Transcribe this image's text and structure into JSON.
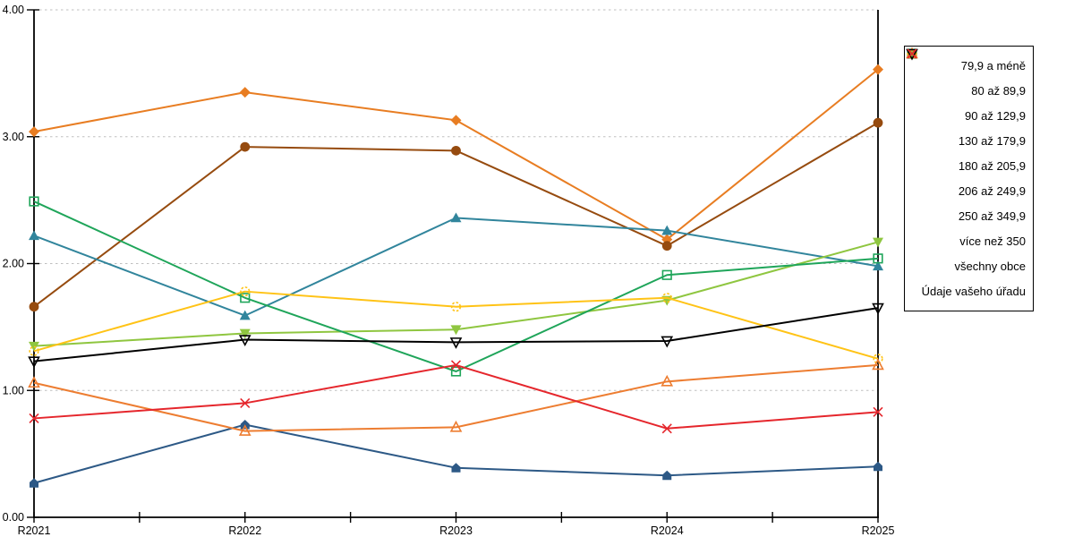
{
  "chart_data": {
    "type": "line",
    "categories": [
      "R2021",
      "R2022",
      "R2023",
      "R2024",
      "R2025"
    ],
    "series": [
      {
        "name": "79,9 a méně",
        "color": "#E87D22",
        "marker": "diamond-filled",
        "values": [
          3.04,
          3.35,
          3.13,
          2.19,
          3.53
        ]
      },
      {
        "name": "80 až 89,9",
        "color": "#964B0F",
        "marker": "circle-filled",
        "values": [
          1.66,
          2.92,
          2.89,
          2.14,
          3.11
        ]
      },
      {
        "name": "90 až 129,9",
        "color": "#31859C",
        "marker": "triangle-up-filled",
        "values": [
          2.22,
          1.59,
          2.36,
          2.26,
          1.98
        ]
      },
      {
        "name": "130 až 179,9",
        "color": "#2D5986",
        "marker": "pentagon-filled",
        "values": [
          0.27,
          0.73,
          0.39,
          0.33,
          0.4
        ]
      },
      {
        "name": "180 až 205,9",
        "color": "#8FC640",
        "marker": "triangle-down-filled",
        "values": [
          1.35,
          1.45,
          1.48,
          1.71,
          2.17
        ]
      },
      {
        "name": "206 až 249,9",
        "color": "#1FA55A",
        "marker": "square-open",
        "values": [
          2.49,
          1.73,
          1.15,
          1.91,
          2.04
        ]
      },
      {
        "name": "250 až 349,9",
        "color": "#FFC316",
        "marker": "circle-open-dashed",
        "values": [
          1.31,
          1.78,
          1.66,
          1.73,
          1.25
        ]
      },
      {
        "name": "více než 350",
        "color": "#ED7D31",
        "marker": "triangle-up-open",
        "values": [
          1.06,
          0.68,
          0.71,
          1.07,
          1.2
        ]
      },
      {
        "name": "všechny obce",
        "color": "#000000",
        "marker": "triangle-down-open",
        "values": [
          1.23,
          1.4,
          1.38,
          1.39,
          1.65
        ]
      },
      {
        "name": "Údaje vašeho úřadu",
        "color": "#E5262C",
        "marker": "x",
        "values": [
          0.78,
          0.9,
          1.2,
          0.7,
          0.83
        ]
      }
    ],
    "title": "",
    "xlabel": "",
    "ylabel": "",
    "ylim": [
      0,
      4
    ],
    "y_ticks": [
      0,
      1,
      2,
      3,
      4
    ],
    "y_tick_labels": [
      "0.00",
      "1.00",
      "2.00",
      "3.00",
      "4.00"
    ],
    "grid": "horizontal-dashed",
    "grid_color": "#BFBFBF",
    "legend_position": "right"
  }
}
